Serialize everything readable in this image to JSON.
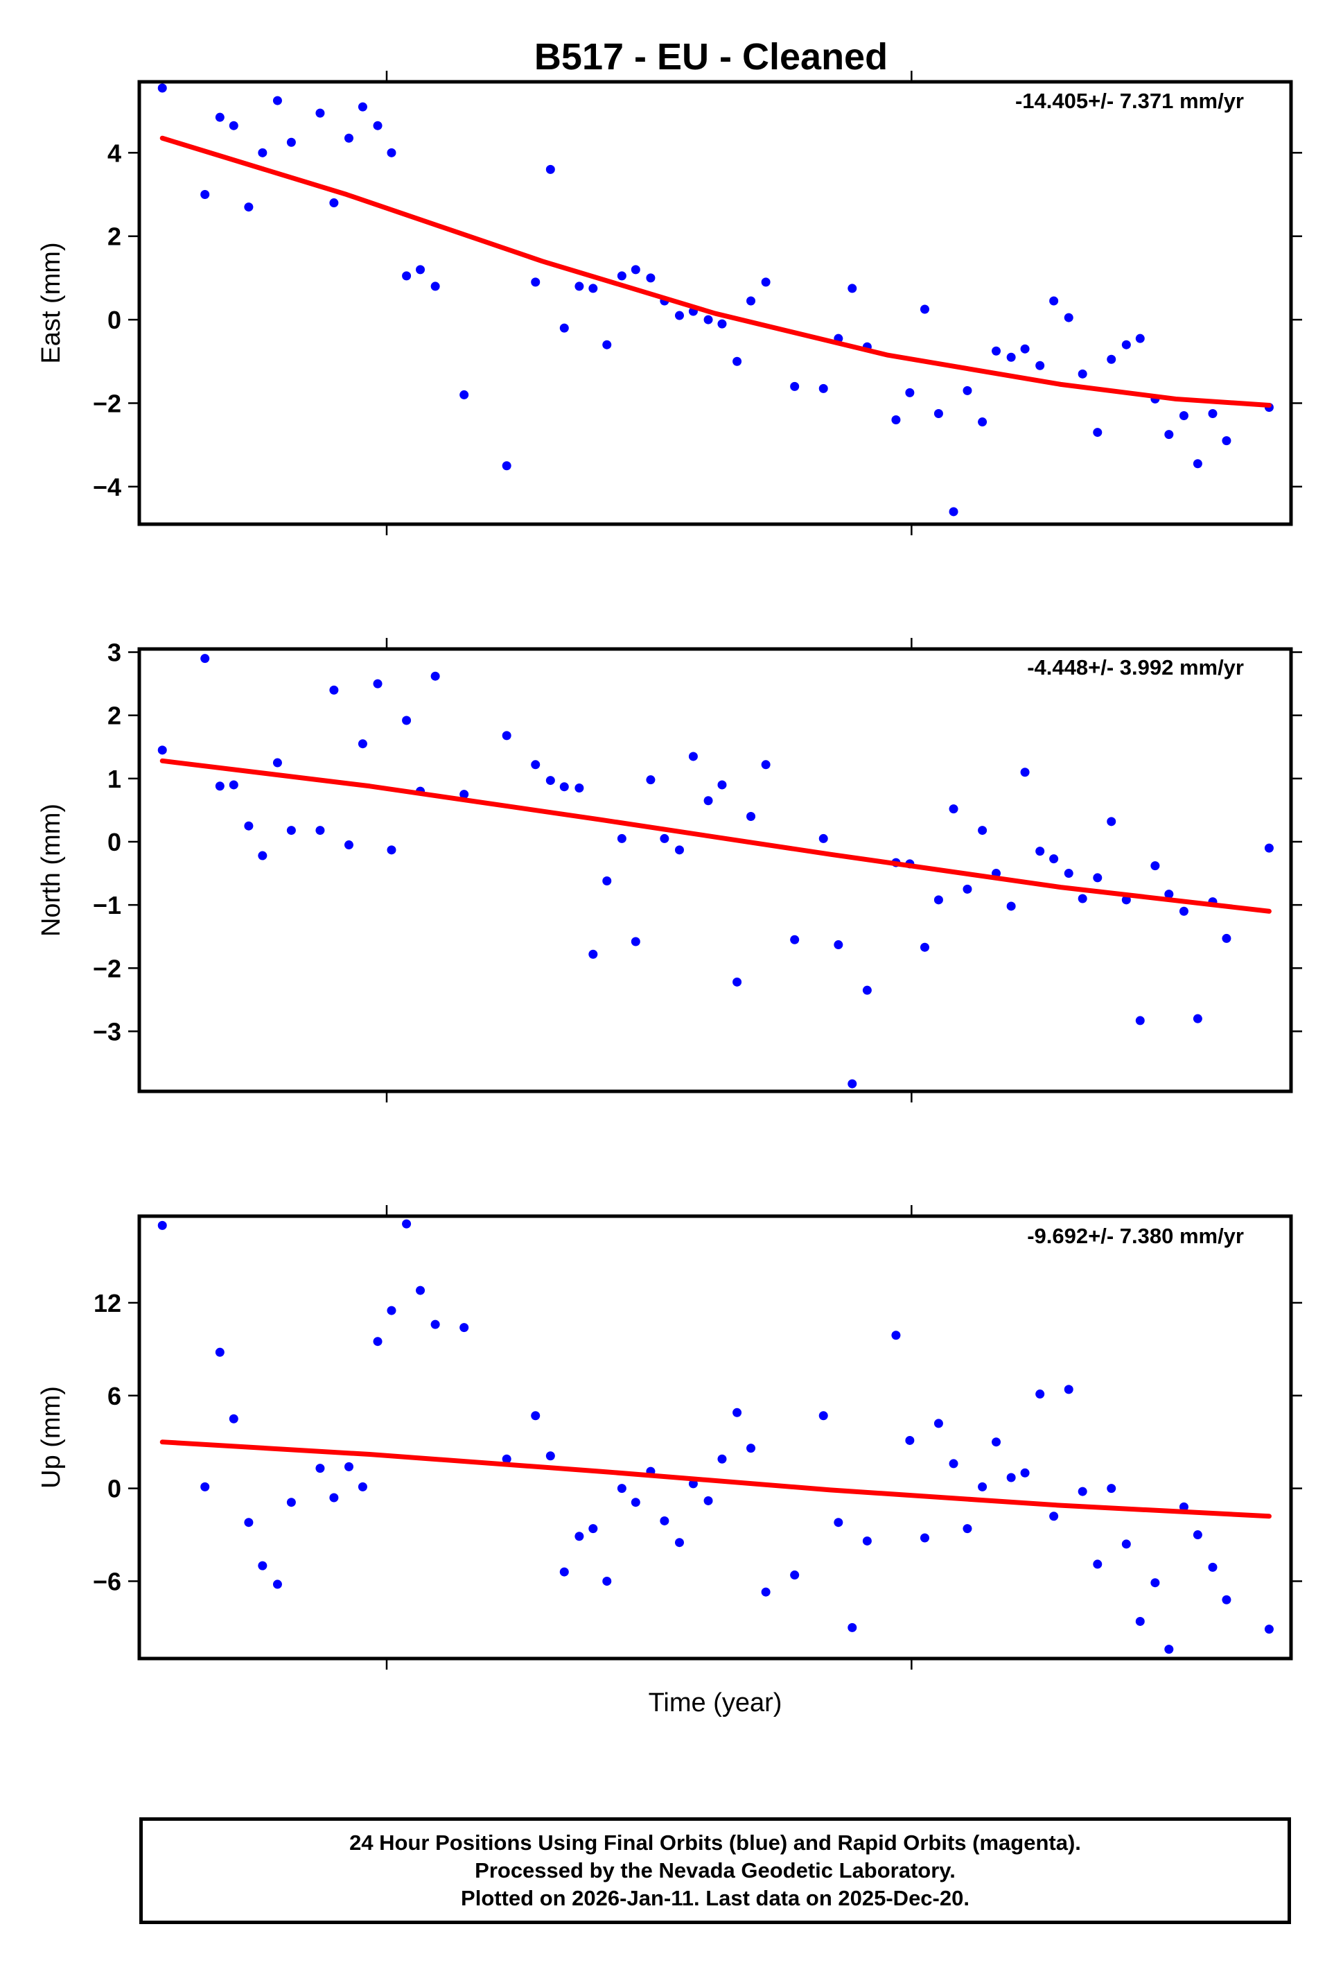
{
  "title": "B517  - EU - Cleaned",
  "xlabel": "Time (year)",
  "footer": {
    "line1": "24 Hour Positions Using Final Orbits (blue) and Rapid Orbits (magenta).",
    "line2": "Processed by the Nevada Geodetic Laboratory.",
    "line3": "Plotted on 2026-Jan-11. Last data on 2025-Dec-20."
  },
  "colors": {
    "points": "#0000ff",
    "fit": "#ff0000",
    "frame": "#000000"
  },
  "chart_data": [
    {
      "type": "scatter",
      "ylabel": "East (mm)",
      "rate_label": "-14.405+/- 7.371 mm/yr",
      "ylim": [
        -4.9,
        5.7
      ],
      "yticks": [
        4,
        2,
        0,
        -2,
        -4
      ],
      "ytick_labels": [
        "4",
        "2",
        "0",
        "−2",
        "−4"
      ],
      "xlim": [
        0,
        1
      ],
      "points": [
        [
          0.02,
          5.55
        ],
        [
          0.057,
          3.0
        ],
        [
          0.07,
          4.85
        ],
        [
          0.082,
          4.65
        ],
        [
          0.095,
          2.7
        ],
        [
          0.107,
          4.0
        ],
        [
          0.12,
          5.25
        ],
        [
          0.132,
          4.25
        ],
        [
          0.157,
          4.95
        ],
        [
          0.169,
          2.8
        ],
        [
          0.182,
          4.35
        ],
        [
          0.194,
          5.1
        ],
        [
          0.207,
          4.65
        ],
        [
          0.219,
          4.0
        ],
        [
          0.232,
          1.05
        ],
        [
          0.244,
          1.2
        ],
        [
          0.257,
          0.8
        ],
        [
          0.282,
          -1.8
        ],
        [
          0.319,
          -3.5
        ],
        [
          0.344,
          0.9
        ],
        [
          0.357,
          3.6
        ],
        [
          0.369,
          -0.2
        ],
        [
          0.382,
          0.8
        ],
        [
          0.394,
          0.75
        ],
        [
          0.406,
          -0.6
        ],
        [
          0.419,
          1.05
        ],
        [
          0.431,
          1.2
        ],
        [
          0.444,
          1.0
        ],
        [
          0.456,
          0.45
        ],
        [
          0.469,
          0.1
        ],
        [
          0.481,
          0.2
        ],
        [
          0.494,
          0.0
        ],
        [
          0.506,
          -0.1
        ],
        [
          0.519,
          -1.0
        ],
        [
          0.531,
          0.45
        ],
        [
          0.544,
          0.9
        ],
        [
          0.569,
          -1.6
        ],
        [
          0.594,
          -1.65
        ],
        [
          0.607,
          -0.45
        ],
        [
          0.619,
          0.75
        ],
        [
          0.632,
          -0.65
        ],
        [
          0.657,
          -2.4
        ],
        [
          0.669,
          -1.75
        ],
        [
          0.682,
          0.25
        ],
        [
          0.694,
          -2.25
        ],
        [
          0.707,
          -4.6
        ],
        [
          0.719,
          -1.7
        ],
        [
          0.732,
          -2.45
        ],
        [
          0.744,
          -0.75
        ],
        [
          0.757,
          -0.9
        ],
        [
          0.769,
          -0.7
        ],
        [
          0.782,
          -1.1
        ],
        [
          0.794,
          0.45
        ],
        [
          0.807,
          0.05
        ],
        [
          0.819,
          -1.3
        ],
        [
          0.832,
          -2.7
        ],
        [
          0.844,
          -0.95
        ],
        [
          0.857,
          -0.6
        ],
        [
          0.869,
          -0.45
        ],
        [
          0.882,
          -1.9
        ],
        [
          0.894,
          -2.75
        ],
        [
          0.907,
          -2.3
        ],
        [
          0.919,
          -3.45
        ],
        [
          0.932,
          -2.25
        ],
        [
          0.944,
          -2.9
        ],
        [
          0.981,
          -2.1
        ]
      ],
      "fit": [
        [
          0.02,
          4.35
        ],
        [
          0.18,
          3.0
        ],
        [
          0.35,
          1.4
        ],
        [
          0.5,
          0.15
        ],
        [
          0.65,
          -0.85
        ],
        [
          0.8,
          -1.55
        ],
        [
          0.9,
          -1.9
        ],
        [
          0.981,
          -2.05
        ]
      ]
    },
    {
      "type": "scatter",
      "ylabel": "North (mm)",
      "rate_label": "-4.448+/- 3.992 mm/yr",
      "ylim": [
        -3.95,
        3.05
      ],
      "yticks": [
        3,
        2,
        1,
        0,
        -1,
        -2,
        -3
      ],
      "ytick_labels": [
        "3",
        "2",
        "1",
        "0",
        "−1",
        "−2",
        "−3"
      ],
      "xlim": [
        0,
        1
      ],
      "points": [
        [
          0.02,
          1.45
        ],
        [
          0.057,
          2.9
        ],
        [
          0.07,
          0.88
        ],
        [
          0.082,
          0.9
        ],
        [
          0.095,
          0.25
        ],
        [
          0.107,
          -0.22
        ],
        [
          0.12,
          1.25
        ],
        [
          0.132,
          0.18
        ],
        [
          0.157,
          0.18
        ],
        [
          0.169,
          2.4
        ],
        [
          0.182,
          -0.05
        ],
        [
          0.194,
          1.55
        ],
        [
          0.207,
          2.5
        ],
        [
          0.219,
          -0.13
        ],
        [
          0.232,
          1.92
        ],
        [
          0.244,
          0.8
        ],
        [
          0.257,
          2.62
        ],
        [
          0.282,
          0.75
        ],
        [
          0.319,
          1.68
        ],
        [
          0.344,
          1.22
        ],
        [
          0.357,
          0.97
        ],
        [
          0.369,
          0.87
        ],
        [
          0.382,
          0.85
        ],
        [
          0.394,
          -1.78
        ],
        [
          0.406,
          -0.62
        ],
        [
          0.419,
          0.05
        ],
        [
          0.431,
          -1.58
        ],
        [
          0.444,
          0.98
        ],
        [
          0.456,
          0.05
        ],
        [
          0.469,
          -0.13
        ],
        [
          0.481,
          1.35
        ],
        [
          0.494,
          0.65
        ],
        [
          0.506,
          0.9
        ],
        [
          0.519,
          -2.22
        ],
        [
          0.531,
          0.4
        ],
        [
          0.544,
          1.22
        ],
        [
          0.569,
          -1.55
        ],
        [
          0.594,
          0.05
        ],
        [
          0.607,
          -1.63
        ],
        [
          0.619,
          -3.83
        ],
        [
          0.632,
          -2.35
        ],
        [
          0.657,
          -0.33
        ],
        [
          0.669,
          -0.35
        ],
        [
          0.682,
          -1.67
        ],
        [
          0.694,
          -0.92
        ],
        [
          0.707,
          0.52
        ],
        [
          0.719,
          -0.75
        ],
        [
          0.732,
          0.18
        ],
        [
          0.744,
          -0.5
        ],
        [
          0.757,
          -1.02
        ],
        [
          0.769,
          1.1
        ],
        [
          0.782,
          -0.15
        ],
        [
          0.794,
          -0.27
        ],
        [
          0.807,
          -0.5
        ],
        [
          0.819,
          -0.9
        ],
        [
          0.832,
          -0.57
        ],
        [
          0.844,
          0.32
        ],
        [
          0.857,
          -0.92
        ],
        [
          0.869,
          -2.83
        ],
        [
          0.882,
          -0.38
        ],
        [
          0.894,
          -0.83
        ],
        [
          0.907,
          -1.1
        ],
        [
          0.919,
          -2.8
        ],
        [
          0.932,
          -0.95
        ],
        [
          0.944,
          -1.53
        ],
        [
          0.981,
          -0.1
        ]
      ],
      "fit": [
        [
          0.02,
          1.28
        ],
        [
          0.2,
          0.88
        ],
        [
          0.4,
          0.35
        ],
        [
          0.6,
          -0.2
        ],
        [
          0.8,
          -0.72
        ],
        [
          0.981,
          -1.1
        ]
      ]
    },
    {
      "type": "scatter",
      "ylabel": "Up (mm)",
      "rate_label": "-9.692+/- 7.380 mm/yr",
      "ylim": [
        -11,
        17.6
      ],
      "yticks": [
        12,
        6,
        0,
        -6
      ],
      "ytick_labels": [
        "12",
        "6",
        "0",
        "−6"
      ],
      "xlim": [
        0,
        1
      ],
      "points": [
        [
          0.02,
          17.0
        ],
        [
          0.057,
          0.1
        ],
        [
          0.07,
          8.8
        ],
        [
          0.082,
          4.5
        ],
        [
          0.095,
          -2.2
        ],
        [
          0.107,
          -5.0
        ],
        [
          0.12,
          -6.2
        ],
        [
          0.132,
          -0.9
        ],
        [
          0.157,
          1.3
        ],
        [
          0.169,
          -0.6
        ],
        [
          0.182,
          1.4
        ],
        [
          0.194,
          0.1
        ],
        [
          0.207,
          9.5
        ],
        [
          0.219,
          11.5
        ],
        [
          0.232,
          17.1
        ],
        [
          0.244,
          12.8
        ],
        [
          0.257,
          10.6
        ],
        [
          0.282,
          10.4
        ],
        [
          0.319,
          1.9
        ],
        [
          0.344,
          4.7
        ],
        [
          0.357,
          2.1
        ],
        [
          0.369,
          -5.4
        ],
        [
          0.382,
          -3.1
        ],
        [
          0.394,
          -2.6
        ],
        [
          0.406,
          -6.0
        ],
        [
          0.419,
          0.0
        ],
        [
          0.431,
          -0.9
        ],
        [
          0.444,
          1.1
        ],
        [
          0.456,
          -2.1
        ],
        [
          0.469,
          -3.5
        ],
        [
          0.481,
          0.3
        ],
        [
          0.494,
          -0.8
        ],
        [
          0.506,
          1.9
        ],
        [
          0.519,
          4.9
        ],
        [
          0.531,
          2.6
        ],
        [
          0.544,
          -6.7
        ],
        [
          0.569,
          -5.6
        ],
        [
          0.594,
          4.7
        ],
        [
          0.607,
          -2.2
        ],
        [
          0.619,
          -9.0
        ],
        [
          0.632,
          -3.4
        ],
        [
          0.657,
          9.9
        ],
        [
          0.669,
          3.1
        ],
        [
          0.682,
          -3.2
        ],
        [
          0.694,
          4.2
        ],
        [
          0.707,
          1.6
        ],
        [
          0.719,
          -2.6
        ],
        [
          0.732,
          0.1
        ],
        [
          0.744,
          3.0
        ],
        [
          0.757,
          0.7
        ],
        [
          0.769,
          1.0
        ],
        [
          0.782,
          6.1
        ],
        [
          0.794,
          -1.8
        ],
        [
          0.807,
          6.4
        ],
        [
          0.819,
          -0.2
        ],
        [
          0.832,
          -4.9
        ],
        [
          0.844,
          0.0
        ],
        [
          0.857,
          -3.6
        ],
        [
          0.869,
          -8.6
        ],
        [
          0.882,
          -6.1
        ],
        [
          0.894,
          -10.4
        ],
        [
          0.907,
          -1.2
        ],
        [
          0.919,
          -3.0
        ],
        [
          0.932,
          -5.1
        ],
        [
          0.944,
          -7.2
        ],
        [
          0.981,
          -9.1
        ]
      ],
      "fit": [
        [
          0.02,
          3.0
        ],
        [
          0.2,
          2.2
        ],
        [
          0.4,
          1.1
        ],
        [
          0.6,
          -0.1
        ],
        [
          0.8,
          -1.1
        ],
        [
          0.981,
          -1.8
        ]
      ]
    }
  ]
}
